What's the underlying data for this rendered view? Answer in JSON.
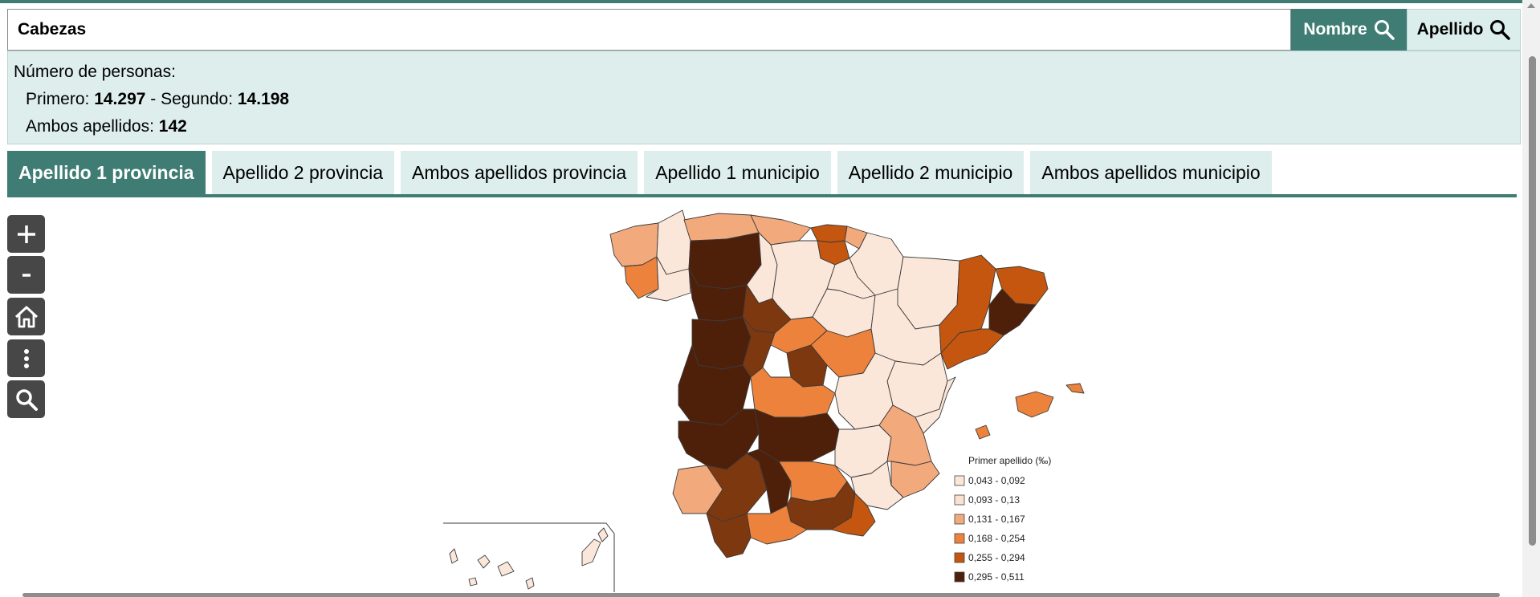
{
  "search": {
    "value": "Cabezas"
  },
  "buttons": {
    "nombre": "Nombre",
    "apellido": "Apellido"
  },
  "info": {
    "heading": "Número de personas:",
    "primero_label": "Primero:",
    "primero_value": "14.297",
    "sep": "- Segundo:",
    "segundo_value": "14.198",
    "ambos_label": "Ambos apellidos:",
    "ambos_value": "142"
  },
  "tabs": [
    {
      "label": "Apellido 1 provincia",
      "active": true
    },
    {
      "label": "Apellido 2 provincia",
      "active": false
    },
    {
      "label": "Ambos apellidos provincia",
      "active": false
    },
    {
      "label": "Apellido 1 municipio",
      "active": false
    },
    {
      "label": "Apellido 2 municipio",
      "active": false
    },
    {
      "label": "Ambos apellidos municipio",
      "active": false
    }
  ],
  "map_controls": [
    "zoom-in-icon",
    "zoom-out-icon",
    "home-icon",
    "more-vertical-icon",
    "search-icon"
  ],
  "legend": {
    "title": "Primer apellido (‰)",
    "items": [
      {
        "label": "0,043 - 0,092",
        "color": "#fbe6da"
      },
      {
        "label": "0,093 - 0,13",
        "color": "#fbe2d0"
      },
      {
        "label": "0,131 - 0,167",
        "color": "#f2a97c"
      },
      {
        "label": "0,168 - 0,254",
        "color": "#ec823b"
      },
      {
        "label": "0,255 - 0,294",
        "color": "#c4560f"
      },
      {
        "label": "0,295 - 0,511",
        "color": "#4e200a"
      }
    ]
  },
  "colors": {
    "accent": "#3f7d74",
    "panel": "#ddeeec"
  }
}
